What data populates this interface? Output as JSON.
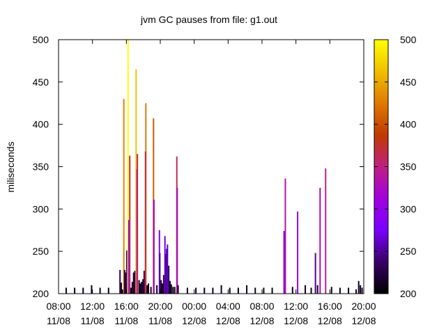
{
  "chart_data": {
    "type": "bar",
    "title": "jvm GC pauses from file: g1.out",
    "xlabel": "",
    "ylabel": "miliseconds",
    "ylim": [
      200,
      500
    ],
    "yticks": [
      200,
      250,
      300,
      350,
      400,
      450,
      500
    ],
    "xlim_hours": [
      8,
      44
    ],
    "xtick_hours": [
      8,
      12,
      16,
      20,
      24,
      28,
      32,
      36,
      40,
      44
    ],
    "xticks": [
      {
        "time": "08:00",
        "date": "11/08"
      },
      {
        "time": "12:00",
        "date": "11/08"
      },
      {
        "time": "16:00",
        "date": "11/08"
      },
      {
        "time": "20:00",
        "date": "11/08"
      },
      {
        "time": "00:00",
        "date": "12/08"
      },
      {
        "time": "04:00",
        "date": "12/08"
      },
      {
        "time": "08:00",
        "date": "12/08"
      },
      {
        "time": "12:00",
        "date": "12/08"
      },
      {
        "time": "16:00",
        "date": "12/08"
      },
      {
        "time": "20:00",
        "date": "12/08"
      }
    ],
    "colorbar": {
      "range": [
        200,
        500
      ],
      "ticks": [
        200,
        250,
        300,
        350,
        400,
        450,
        500
      ],
      "palette": [
        "#000000",
        "#3a0066",
        "#7a00ff",
        "#a000e0",
        "#c02080",
        "#c03a00",
        "#e07a00",
        "#f0c000",
        "#ffff00"
      ]
    },
    "grid": false,
    "legend": "none",
    "points": [
      [
        8.9,
        207
      ],
      [
        9.9,
        207
      ],
      [
        10.9,
        207
      ],
      [
        11.9,
        210
      ],
      [
        12.9,
        207
      ],
      [
        13.9,
        207
      ],
      [
        15.25,
        228
      ],
      [
        15.4,
        213
      ],
      [
        15.55,
        205
      ],
      [
        15.7,
        430
      ],
      [
        15.8,
        228
      ],
      [
        15.9,
        225
      ],
      [
        16.05,
        251
      ],
      [
        16.2,
        500
      ],
      [
        16.3,
        287
      ],
      [
        16.4,
        363
      ],
      [
        16.55,
        207
      ],
      [
        16.7,
        214
      ],
      [
        16.85,
        225
      ],
      [
        17.0,
        227
      ],
      [
        17.15,
        465
      ],
      [
        17.3,
        365
      ],
      [
        17.25,
        347
      ],
      [
        17.5,
        216
      ],
      [
        17.65,
        212
      ],
      [
        17.8,
        214
      ],
      [
        17.95,
        217
      ],
      [
        18.1,
        227
      ],
      [
        18.3,
        425
      ],
      [
        18.25,
        368
      ],
      [
        18.45,
        210
      ],
      [
        18.6,
        212
      ],
      [
        18.9,
        208
      ],
      [
        19.2,
        407
      ],
      [
        19.25,
        311
      ],
      [
        19.6,
        210
      ],
      [
        19.9,
        275
      ],
      [
        19.95,
        248
      ],
      [
        20.1,
        216
      ],
      [
        20.25,
        212
      ],
      [
        20.4,
        222
      ],
      [
        20.55,
        268
      ],
      [
        20.65,
        247
      ],
      [
        20.75,
        253
      ],
      [
        20.85,
        258
      ],
      [
        21.0,
        233
      ],
      [
        21.15,
        215
      ],
      [
        21.3,
        211
      ],
      [
        21.5,
        208
      ],
      [
        21.7,
        208
      ],
      [
        21.95,
        362
      ],
      [
        22.0,
        325
      ],
      [
        22.1,
        210
      ],
      [
        23.2,
        207
      ],
      [
        24.2,
        207
      ],
      [
        25.2,
        207
      ],
      [
        26.2,
        207
      ],
      [
        27.2,
        210
      ],
      [
        28.2,
        207
      ],
      [
        29.2,
        207
      ],
      [
        30.2,
        210
      ],
      [
        31.2,
        207
      ],
      [
        32.2,
        207
      ],
      [
        33.2,
        207
      ],
      [
        34.6,
        274
      ],
      [
        34.75,
        336
      ],
      [
        35.6,
        208
      ],
      [
        36.2,
        297
      ],
      [
        37.1,
        210
      ],
      [
        37.8,
        207
      ],
      [
        38.3,
        248
      ],
      [
        38.55,
        210
      ],
      [
        38.85,
        325
      ],
      [
        39.5,
        348
      ],
      [
        40.2,
        208
      ],
      [
        41.2,
        207
      ],
      [
        42.2,
        207
      ],
      [
        43.1,
        205
      ],
      [
        43.4,
        215
      ],
      [
        43.6,
        210
      ],
      [
        43.8,
        207
      ]
    ]
  }
}
